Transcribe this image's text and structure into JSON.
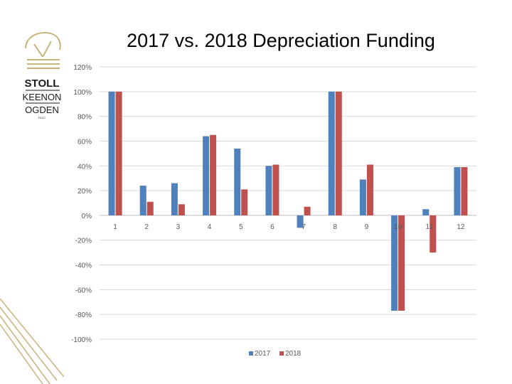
{
  "logo": {
    "line1": "STOLL",
    "line2": "KEENON",
    "line3": "OGDEN",
    "line4": "PLLC",
    "color": "#c8b37a"
  },
  "colors": {
    "series2017": "#4f81bd",
    "series2018": "#c0504d",
    "grid": "#d9d9d9",
    "axis": "#bfbfbf",
    "decor": "#c8b37a"
  },
  "chart_data": {
    "type": "bar",
    "title": "2017 vs. 2018 Depreciation Funding",
    "categories": [
      "1",
      "2",
      "3",
      "4",
      "5",
      "6",
      "7",
      "8",
      "9",
      "10",
      "11",
      "12"
    ],
    "series": [
      {
        "name": "2017",
        "values": [
          100,
          24,
          26,
          64,
          54,
          40,
          -10,
          100,
          29,
          -77,
          5,
          39
        ]
      },
      {
        "name": "2018",
        "values": [
          100,
          11,
          9,
          65,
          21,
          41,
          7,
          100,
          41,
          -77,
          -30,
          39
        ]
      }
    ],
    "ylim": [
      -100,
      120
    ],
    "yticks": [
      -100,
      -80,
      -60,
      -40,
      -20,
      0,
      20,
      40,
      60,
      80,
      100,
      120
    ],
    "ytick_labels": [
      "-100%",
      "-80%",
      "-60%",
      "-40%",
      "-20%",
      "0%",
      "20%",
      "40%",
      "60%",
      "80%",
      "100%",
      "120%"
    ],
    "grid": true,
    "legend": "bottom"
  }
}
